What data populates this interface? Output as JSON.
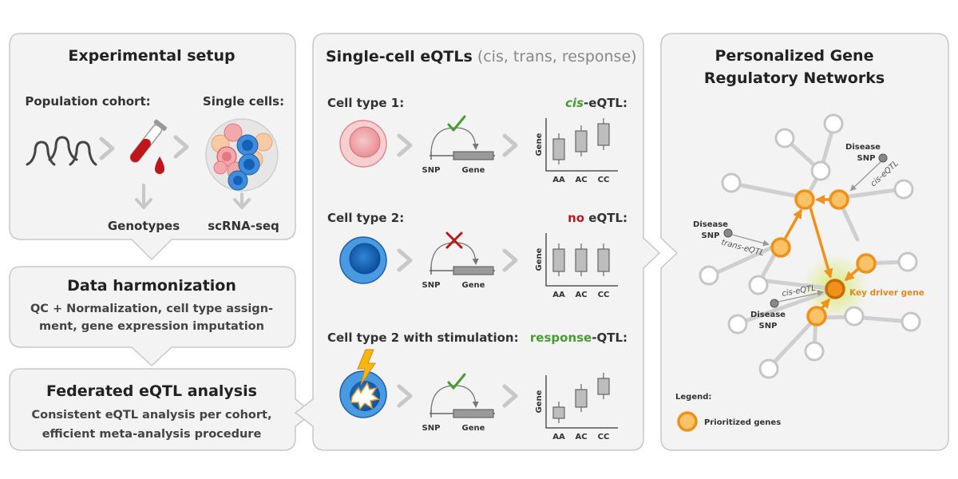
{
  "panel1": {
    "title": "Experimental setup",
    "population_label": "Population cohort:",
    "single_cells_label": "Single cells:",
    "genotypes_label": "Genotypes",
    "scrna_label": "scRNA-seq"
  },
  "panel2": {
    "title": "Data harmonization",
    "line1": "QC + Normalization, cell type  assign-",
    "line2": "ment, gene expression imputation"
  },
  "panel3": {
    "title": "Federated eQTL analysis",
    "line1": "Consistent eQTL analysis per cohort,",
    "line2": "efficient meta-analysis procedure"
  },
  "panel4": {
    "title": "Single-cell eQTLs",
    "subtitle": "(cis, trans, response)",
    "rows": [
      {
        "cell_type": "Cell type 1:",
        "result_prefix": "cis",
        "result_suffix": "-eQTL:"
      },
      {
        "cell_type": "Cell type 2:",
        "result_prefix": "no",
        "result_suffix": " eQTL:"
      },
      {
        "cell_type": "Cell type 2 with stimulation:",
        "result_prefix": "response",
        "result_suffix": "-QTL:"
      }
    ],
    "snp_label": "SNP",
    "gene_label": "Gene",
    "axis_label": "Gene",
    "genotypes": [
      "AA",
      "AC",
      "CC"
    ]
  },
  "panel5": {
    "title_line1": "Personalized Gene",
    "title_line2": "Regulatory Networks",
    "disease": "Disease",
    "snp": "SNP",
    "cis_eqtl": "cis-eQTL",
    "trans_eqtl": "trans-eQTL",
    "key_driver": "Key driver gene",
    "legend_title": "Legend:",
    "legend_item": "Prioritized genes"
  },
  "colors": {
    "green": "#4a9a35",
    "red": "#b7191d",
    "orange": "#f0921a",
    "panel_bg": "#f3f3f3"
  }
}
